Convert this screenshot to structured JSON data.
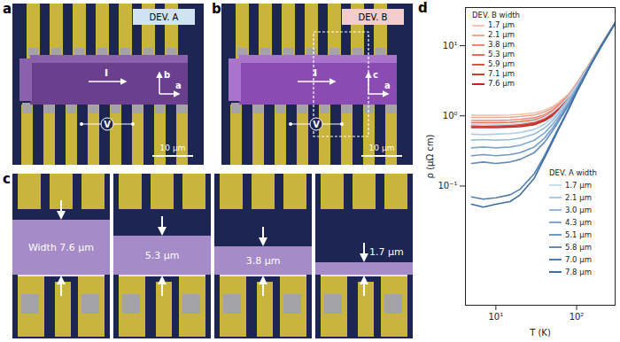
{
  "panels": {
    "a": {
      "letter": "a",
      "device": "DEV. A",
      "current": "I",
      "voltage": "V",
      "axis_up": "b",
      "axis_right": "a",
      "scale_bar": "10 μm"
    },
    "b": {
      "letter": "b",
      "device": "DEV. B",
      "current": "I",
      "voltage": "V",
      "axis_up": "c",
      "axis_right": "a",
      "scale_bar": "10 μm"
    },
    "c": {
      "letter": "c",
      "widths": [
        "Width 7.6 μm",
        "5.3 μm",
        "3.8 μm",
        "1.7 μm"
      ]
    },
    "d": {
      "letter": "d"
    }
  },
  "chart_data": {
    "type": "line",
    "x_label": "T (K)",
    "y_label": "ρ (μΩ cm)",
    "log": true,
    "grid": false,
    "xlim": [
      4.2,
      300
    ],
    "ylim": [
      0.002,
      35
    ],
    "xticks": [
      {
        "value": 10,
        "label": "10¹"
      },
      {
        "value": 100,
        "label": "10²"
      }
    ],
    "yticks": [
      {
        "value": 0.1,
        "label": "10⁻¹"
      },
      {
        "value": 1,
        "label": "10⁰"
      },
      {
        "value": 10,
        "label": "10¹"
      }
    ],
    "x": [
      5,
      7,
      10,
      15,
      20,
      30,
      40,
      50,
      60,
      80,
      100,
      150,
      200,
      300
    ],
    "series": [
      {
        "group": "DEV. B width",
        "name": "1.7 μm",
        "color": "#f4c4b6",
        "values": [
          1.02,
          1.02,
          1.02,
          1.03,
          1.05,
          1.1,
          1.2,
          1.35,
          1.55,
          2.05,
          2.9,
          5.9,
          10.2,
          21.5
        ]
      },
      {
        "group": "DEV. B width",
        "name": "2.1 μm",
        "color": "#eea791",
        "values": [
          0.95,
          0.95,
          0.95,
          0.96,
          0.98,
          1.03,
          1.13,
          1.29,
          1.5,
          2.0,
          2.85,
          5.9,
          10.1,
          21.3
        ]
      },
      {
        "group": "DEV. B width",
        "name": "3.8 μm",
        "color": "#e88a72",
        "values": [
          0.86,
          0.86,
          0.86,
          0.87,
          0.89,
          0.94,
          1.04,
          1.2,
          1.42,
          1.95,
          2.8,
          5.85,
          10.1,
          21.2
        ]
      },
      {
        "group": "DEV. B width",
        "name": "5.3 μm",
        "color": "#e06f57",
        "values": [
          0.8,
          0.8,
          0.8,
          0.81,
          0.83,
          0.88,
          0.98,
          1.14,
          1.36,
          1.9,
          2.78,
          5.8,
          10,
          21.1
        ]
      },
      {
        "group": "DEV. B width",
        "name": "5.9 μm",
        "color": "#d8563f",
        "values": [
          0.73,
          0.73,
          0.73,
          0.74,
          0.76,
          0.81,
          0.91,
          1.07,
          1.29,
          1.85,
          2.75,
          5.8,
          10,
          21
        ]
      },
      {
        "group": "DEV. B width",
        "name": "7.1 μm",
        "color": "#cc3d2c",
        "values": [
          0.7,
          0.71,
          0.7,
          0.71,
          0.73,
          0.78,
          0.88,
          1.04,
          1.26,
          1.82,
          2.72,
          5.75,
          10,
          21
        ]
      },
      {
        "group": "DEV. B width",
        "name": "7.6 μm",
        "color": "#bf2a20",
        "values": [
          0.68,
          0.68,
          0.68,
          0.69,
          0.7,
          0.75,
          0.85,
          1.0,
          1.22,
          1.8,
          2.7,
          5.75,
          10,
          21
        ]
      },
      {
        "group": "DEV. A width",
        "name": "1.7 μm",
        "color": "#cadcee",
        "values": [
          0.75,
          0.74,
          0.75,
          0.76,
          0.78,
          0.84,
          0.95,
          1.12,
          1.34,
          1.9,
          2.75,
          5.8,
          10,
          21
        ]
      },
      {
        "group": "DEV. A width",
        "name": "2.1 μm",
        "color": "#aecbe5",
        "values": [
          0.55,
          0.54,
          0.55,
          0.56,
          0.58,
          0.64,
          0.76,
          0.94,
          1.17,
          1.75,
          2.6,
          5.7,
          9.9,
          21
        ]
      },
      {
        "group": "DEV. A width",
        "name": "3.0 μm",
        "color": "#93badc",
        "values": [
          0.45,
          0.46,
          0.45,
          0.46,
          0.48,
          0.55,
          0.67,
          0.85,
          1.08,
          1.65,
          2.5,
          5.6,
          9.8,
          21
        ]
      },
      {
        "group": "DEV. A width",
        "name": "4.3 μm",
        "color": "#80a9d0",
        "values": [
          0.35,
          0.36,
          0.35,
          0.36,
          0.38,
          0.45,
          0.57,
          0.75,
          0.98,
          1.55,
          2.4,
          5.5,
          9.8,
          21
        ]
      },
      {
        "group": "DEV. A width",
        "name": "5.1 μm",
        "color": "#709ac6",
        "values": [
          0.27,
          0.28,
          0.27,
          0.28,
          0.3,
          0.36,
          0.48,
          0.66,
          0.9,
          1.48,
          2.35,
          5.5,
          9.7,
          21
        ]
      },
      {
        "group": "DEV. A width",
        "name": "5.8 μm",
        "color": "#618cbb",
        "values": [
          0.21,
          0.22,
          0.21,
          0.22,
          0.24,
          0.3,
          0.42,
          0.6,
          0.84,
          1.42,
          2.3,
          5.45,
          9.7,
          21
        ]
      },
      {
        "group": "DEV. A width",
        "name": "7.0 μm",
        "color": "#4f7daf",
        "values": [
          0.07,
          0.065,
          0.068,
          0.075,
          0.09,
          0.15,
          0.27,
          0.45,
          0.68,
          1.28,
          2.2,
          5.35,
          9.6,
          21
        ]
      },
      {
        "group": "DEV. A width",
        "name": "7.8 μm",
        "color": "#3d6ea5",
        "values": [
          0.055,
          0.05,
          0.055,
          0.06,
          0.075,
          0.13,
          0.25,
          0.42,
          0.65,
          1.25,
          2.15,
          5.3,
          9.6,
          21
        ]
      }
    ]
  }
}
